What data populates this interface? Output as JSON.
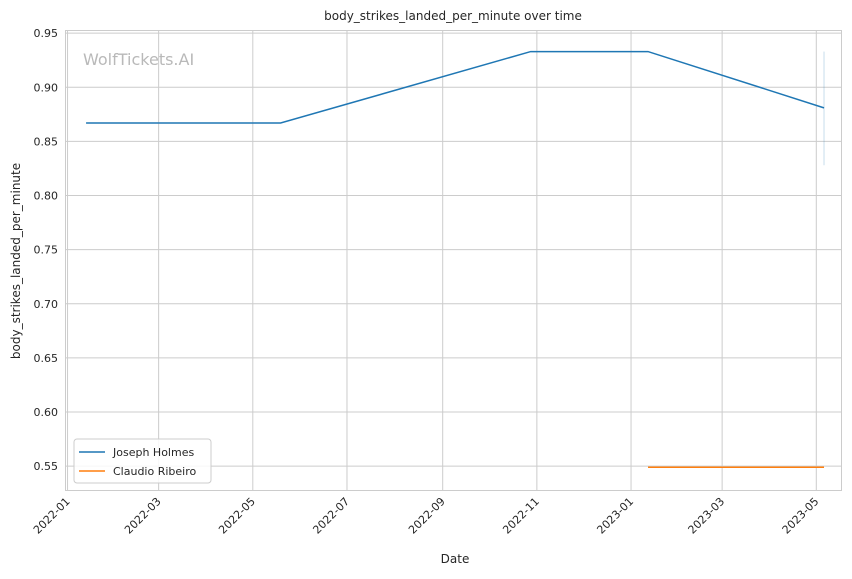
{
  "chart_data": {
    "type": "line",
    "title": "body_strikes_landed_per_minute over time",
    "xlabel": "Date",
    "ylabel": "body_strikes_landed_per_minute",
    "watermark": "WolfTickets.AI",
    "x_ticks": [
      "2022-01",
      "2022-03",
      "2022-05",
      "2022-07",
      "2022-09",
      "2022-11",
      "2023-01",
      "2023-03",
      "2023-05"
    ],
    "y_ticks": [
      "0.55",
      "0.60",
      "0.65",
      "0.70",
      "0.75",
      "0.80",
      "0.85",
      "0.90",
      "0.95"
    ],
    "xlim": [
      "2021-12-31",
      "2023-05-17"
    ],
    "ylim": [
      0.528,
      0.952
    ],
    "grid": true,
    "legend_position": "lower-left",
    "series": [
      {
        "name": "Joseph Holmes",
        "color": "#1f77b4",
        "x": [
          "2022-01-13",
          "2022-05-19",
          "2022-10-28",
          "2023-01-12",
          "2023-05-06"
        ],
        "y": [
          0.867,
          0.867,
          0.933,
          0.933,
          0.881
        ],
        "interval": {
          "x": "2023-05-06",
          "low": 0.828,
          "high": 0.933
        }
      },
      {
        "name": "Claudio Ribeiro",
        "color": "#ff7f0e",
        "x": [
          "2023-01-12",
          "2023-05-06"
        ],
        "y": [
          0.549,
          0.549
        ]
      }
    ]
  }
}
